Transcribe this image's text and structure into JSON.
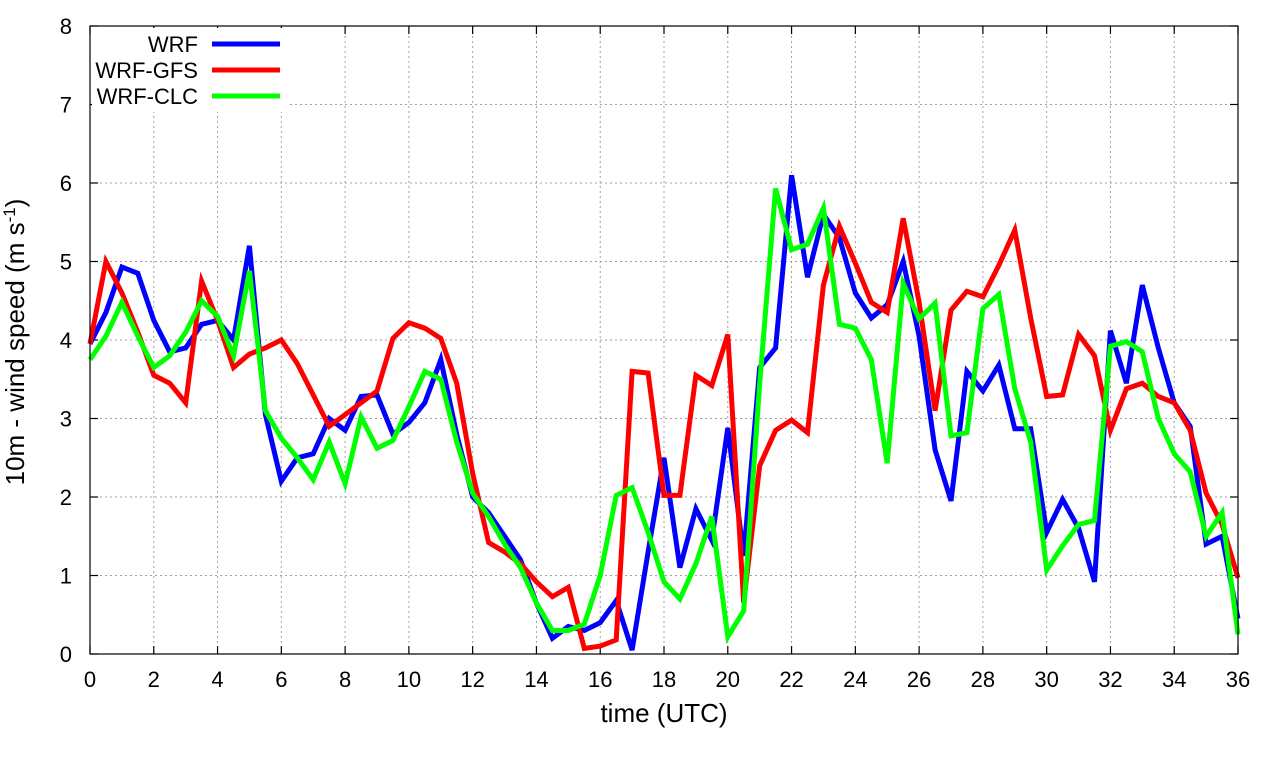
{
  "chart_data": {
    "type": "line",
    "xlabel": "time (UTC)",
    "ylabel_main": "10m - wind speed  (m s",
    "ylabel_sup": "-1",
    "ylabel_end": ")",
    "xlim": [
      0,
      36
    ],
    "ylim": [
      0,
      8
    ],
    "xticks": [
      0,
      2,
      4,
      6,
      8,
      10,
      12,
      14,
      16,
      18,
      20,
      22,
      24,
      26,
      28,
      30,
      32,
      34,
      36
    ],
    "yticks": [
      0,
      1,
      2,
      3,
      4,
      5,
      6,
      7,
      8
    ],
    "grid": true,
    "legend_position": "top-left",
    "x": [
      0,
      0.5,
      1,
      1.5,
      2,
      2.5,
      3,
      3.5,
      4,
      4.5,
      5,
      5.5,
      6,
      6.5,
      7,
      7.5,
      8,
      8.5,
      9,
      9.5,
      10,
      10.5,
      11,
      11.5,
      12,
      12.5,
      13,
      13.5,
      14,
      14.5,
      15,
      15.5,
      16,
      16.5,
      17,
      17.5,
      18,
      18.5,
      19,
      19.5,
      20,
      20.5,
      21,
      21.5,
      22,
      22.5,
      23,
      23.5,
      24,
      24.5,
      25,
      25.5,
      26,
      26.5,
      27,
      27.5,
      28,
      28.5,
      29,
      29.5,
      30,
      30.5,
      31,
      31.5,
      32,
      32.5,
      33,
      33.5,
      34,
      34.5,
      35,
      35.5,
      36
    ],
    "series": [
      {
        "name": "WRF",
        "color": "#0000ff",
        "values": [
          3.95,
          4.35,
          4.93,
          4.85,
          4.25,
          3.85,
          3.9,
          4.2,
          4.25,
          4.0,
          5.2,
          3.05,
          2.2,
          2.5,
          2.55,
          3.0,
          2.85,
          3.28,
          3.3,
          2.8,
          2.95,
          3.2,
          3.75,
          2.8,
          2.0,
          1.8,
          1.5,
          1.2,
          0.65,
          0.2,
          0.35,
          0.3,
          0.4,
          0.68,
          0.05,
          1.3,
          2.5,
          1.1,
          1.85,
          1.45,
          2.88,
          1.25,
          3.65,
          3.9,
          6.1,
          4.8,
          5.6,
          5.3,
          4.6,
          4.28,
          4.45,
          5.0,
          4.05,
          2.6,
          1.95,
          3.6,
          3.35,
          3.68,
          2.87,
          2.87,
          1.55,
          1.97,
          1.6,
          0.92,
          4.12,
          3.45,
          4.7,
          3.9,
          3.2,
          2.9,
          1.4,
          1.5,
          0.45
        ]
      },
      {
        "name": "WRF-GFS",
        "color": "#ff0000",
        "values": [
          3.95,
          5.0,
          4.6,
          4.1,
          3.55,
          3.45,
          3.2,
          4.75,
          4.25,
          3.65,
          3.82,
          3.9,
          4.0,
          3.7,
          3.3,
          2.9,
          3.05,
          3.2,
          3.35,
          4.02,
          4.22,
          4.15,
          4.02,
          3.45,
          2.3,
          1.42,
          1.3,
          1.15,
          0.92,
          0.73,
          0.85,
          0.07,
          0.1,
          0.18,
          3.6,
          3.58,
          2.02,
          2.02,
          3.55,
          3.42,
          4.07,
          0.65,
          2.4,
          2.85,
          2.98,
          2.82,
          4.7,
          5.45,
          4.98,
          4.48,
          4.35,
          5.55,
          4.48,
          3.1,
          4.38,
          4.62,
          4.55,
          4.95,
          5.4,
          4.28,
          3.28,
          3.3,
          4.07,
          3.8,
          2.85,
          3.38,
          3.45,
          3.28,
          3.2,
          2.85,
          2.05,
          1.65,
          0.97
        ]
      },
      {
        "name": "WRF-CLC",
        "color": "#00ff00",
        "values": [
          3.75,
          4.05,
          4.48,
          4.05,
          3.65,
          3.8,
          4.1,
          4.5,
          4.3,
          3.8,
          4.88,
          3.1,
          2.75,
          2.5,
          2.22,
          2.7,
          2.17,
          3.02,
          2.62,
          2.72,
          3.15,
          3.6,
          3.5,
          2.7,
          2.05,
          1.75,
          1.4,
          1.1,
          0.65,
          0.3,
          0.3,
          0.38,
          1.0,
          2.02,
          2.12,
          1.55,
          0.92,
          0.7,
          1.15,
          1.75,
          0.22,
          0.55,
          3.45,
          5.93,
          5.15,
          5.22,
          5.68,
          4.2,
          4.15,
          3.75,
          2.43,
          4.72,
          4.27,
          4.47,
          2.78,
          2.82,
          4.4,
          4.58,
          3.38,
          2.7,
          1.07,
          1.38,
          1.65,
          1.7,
          3.92,
          3.98,
          3.85,
          3.0,
          2.55,
          2.32,
          1.5,
          1.8,
          0.25
        ]
      }
    ]
  }
}
